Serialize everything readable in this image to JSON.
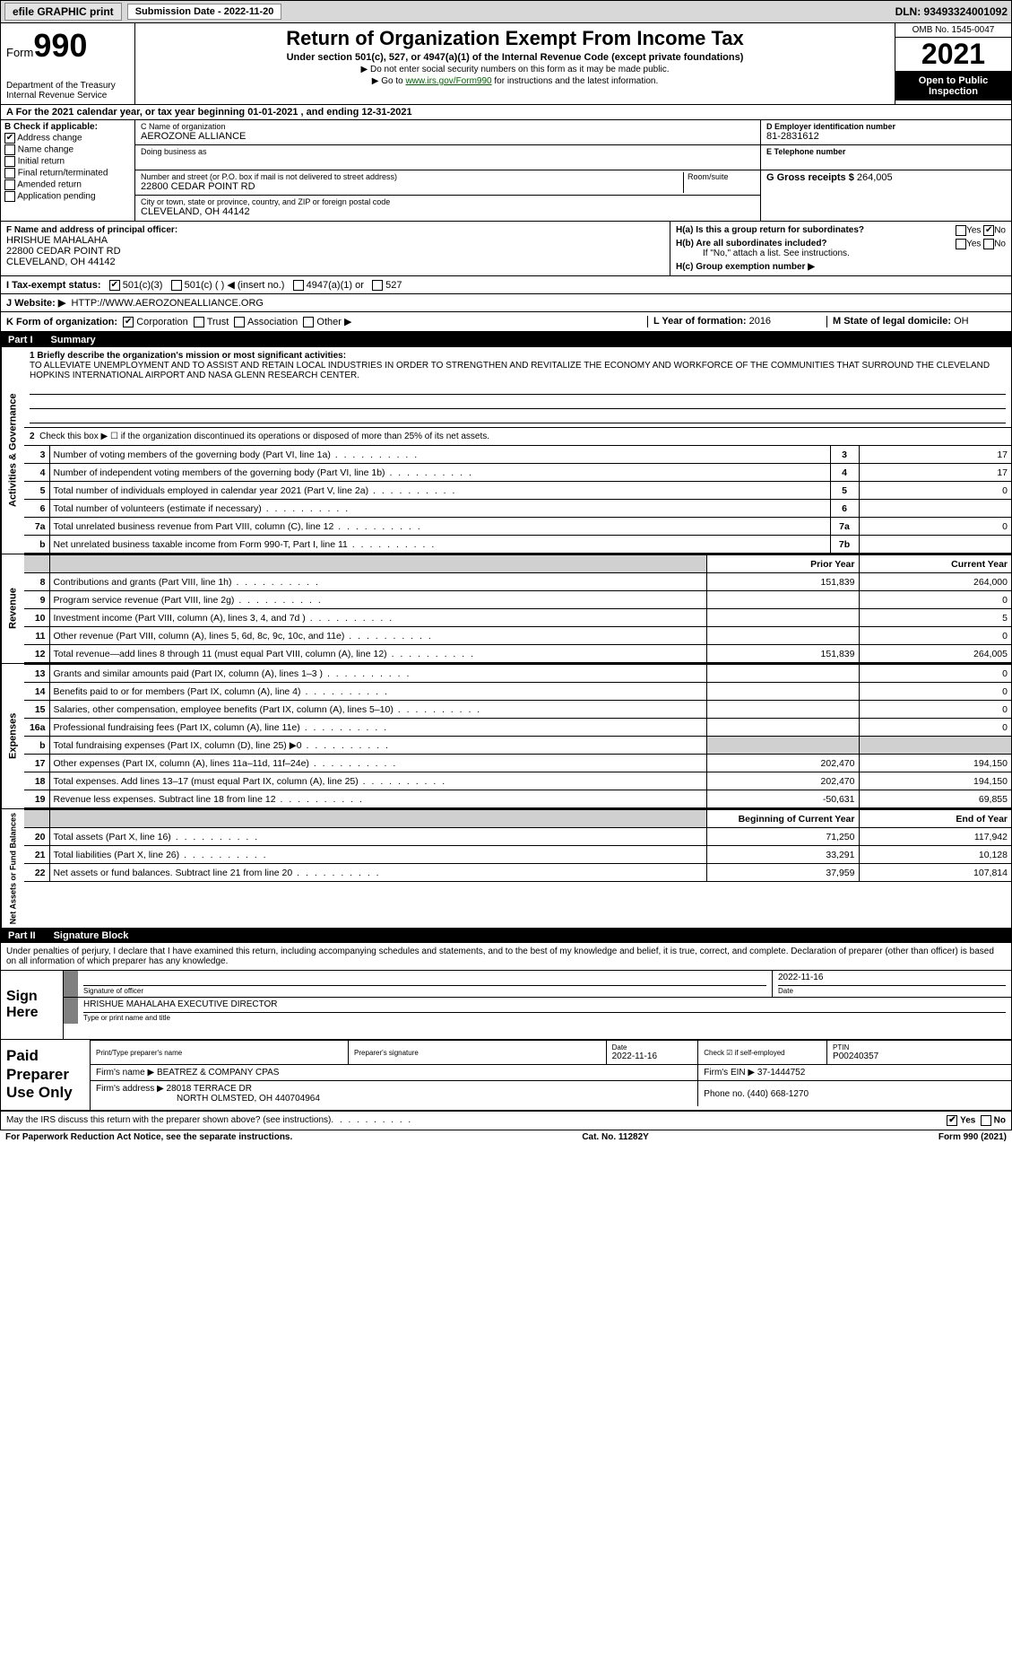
{
  "topbar": {
    "efile": "efile GRAPHIC print",
    "sub_label": "Submission Date - 2022-11-20",
    "dln": "DLN: 93493324001092"
  },
  "header": {
    "form_prefix": "Form",
    "form_number": "990",
    "dept": "Department of the Treasury",
    "irs": "Internal Revenue Service",
    "title": "Return of Organization Exempt From Income Tax",
    "sub": "Under section 501(c), 527, or 4947(a)(1) of the Internal Revenue Code (except private foundations)",
    "note1": "▶ Do not enter social security numbers on this form as it may be made public.",
    "note2_pre": "▶ Go to ",
    "note2_link": "www.irs.gov/Form990",
    "note2_post": " for instructions and the latest information.",
    "omb": "OMB No. 1545-0047",
    "year": "2021",
    "open": "Open to Public Inspection"
  },
  "row_a": "A For the 2021 calendar year, or tax year beginning 01-01-2021   , and ending 12-31-2021",
  "box_b": {
    "hdr": "B Check if applicable:",
    "items": [
      "Address change",
      "Name change",
      "Initial return",
      "Final return/terminated",
      "Amended return",
      "Application pending"
    ]
  },
  "box_c": {
    "name_lbl": "C Name of organization",
    "name": "AEROZONE ALLIANCE",
    "dba_lbl": "Doing business as",
    "dba": "",
    "street_lbl": "Number and street (or P.O. box if mail is not delivered to street address)",
    "room_lbl": "Room/suite",
    "street": "22800 CEDAR POINT RD",
    "city_lbl": "City or town, state or province, country, and ZIP or foreign postal code",
    "city": "CLEVELAND, OH  44142"
  },
  "box_de": {
    "d_lbl": "D Employer identification number",
    "d_val": "81-2831612",
    "e_lbl": "E Telephone number",
    "e_val": "",
    "g_lbl": "G Gross receipts $",
    "g_val": "264,005"
  },
  "box_f": {
    "lbl": "F Name and address of principal officer:",
    "name": "HRISHUE MAHALAHA",
    "addr1": "22800 CEDAR POINT RD",
    "addr2": "CLEVELAND, OH  44142"
  },
  "box_h": {
    "ha": "H(a)  Is this a group return for subordinates?",
    "hb": "H(b)  Are all subordinates included?",
    "hb_note": "If \"No,\" attach a list. See instructions.",
    "hc": "H(c)  Group exemption number ▶",
    "yes": "Yes",
    "no": "No"
  },
  "row_i": {
    "lbl": "I   Tax-exempt status:",
    "o1": "501(c)(3)",
    "o2": "501(c) (   ) ◀ (insert no.)",
    "o3": "4947(a)(1) or",
    "o4": "527"
  },
  "row_j": {
    "lbl": "J   Website: ▶",
    "val": "HTTP://WWW.AEROZONEALLIANCE.ORG"
  },
  "row_k": {
    "lbl": "K Form of organization:",
    "opts": [
      "Corporation",
      "Trust",
      "Association",
      "Other ▶"
    ]
  },
  "row_lm": {
    "l_lbl": "L Year of formation:",
    "l_val": "2016",
    "m_lbl": "M State of legal domicile:",
    "m_val": "OH"
  },
  "part1": {
    "tag": "Part I",
    "title": "Summary"
  },
  "mission": {
    "lbl": "1  Briefly describe the organization's mission or most significant activities:",
    "text": "TO ALLEVIATE UNEMPLOYMENT AND TO ASSIST AND RETAIN LOCAL INDUSTRIES IN ORDER TO STRENGTHEN AND REVITALIZE THE ECONOMY AND WORKFORCE OF THE COMMUNITIES THAT SURROUND THE CLEVELAND HOPKINS INTERNATIONAL AIRPORT AND NASA GLENN RESEARCH CENTER."
  },
  "line2": "Check this box ▶ ☐  if the organization discontinued its operations or disposed of more than 25% of its net assets.",
  "gov_rows": [
    {
      "n": "3",
      "d": "Number of voting members of the governing body (Part VI, line 1a)",
      "b": "3",
      "v": "17"
    },
    {
      "n": "4",
      "d": "Number of independent voting members of the governing body (Part VI, line 1b)",
      "b": "4",
      "v": "17"
    },
    {
      "n": "5",
      "d": "Total number of individuals employed in calendar year 2021 (Part V, line 2a)",
      "b": "5",
      "v": "0"
    },
    {
      "n": "6",
      "d": "Total number of volunteers (estimate if necessary)",
      "b": "6",
      "v": ""
    },
    {
      "n": "7a",
      "d": "Total unrelated business revenue from Part VIII, column (C), line 12",
      "b": "7a",
      "v": "0"
    },
    {
      "n": "b",
      "d": "Net unrelated business taxable income from Form 990-T, Part I, line 11",
      "b": "7b",
      "v": ""
    }
  ],
  "col_hdrs": {
    "prior": "Prior Year",
    "current": "Current Year"
  },
  "rev_rows": [
    {
      "n": "8",
      "d": "Contributions and grants (Part VIII, line 1h)",
      "p": "151,839",
      "c": "264,000"
    },
    {
      "n": "9",
      "d": "Program service revenue (Part VIII, line 2g)",
      "p": "",
      "c": "0"
    },
    {
      "n": "10",
      "d": "Investment income (Part VIII, column (A), lines 3, 4, and 7d )",
      "p": "",
      "c": "5"
    },
    {
      "n": "11",
      "d": "Other revenue (Part VIII, column (A), lines 5, 6d, 8c, 9c, 10c, and 11e)",
      "p": "",
      "c": "0"
    },
    {
      "n": "12",
      "d": "Total revenue—add lines 8 through 11 (must equal Part VIII, column (A), line 12)",
      "p": "151,839",
      "c": "264,005"
    }
  ],
  "exp_rows": [
    {
      "n": "13",
      "d": "Grants and similar amounts paid (Part IX, column (A), lines 1–3 )",
      "p": "",
      "c": "0"
    },
    {
      "n": "14",
      "d": "Benefits paid to or for members (Part IX, column (A), line 4)",
      "p": "",
      "c": "0"
    },
    {
      "n": "15",
      "d": "Salaries, other compensation, employee benefits (Part IX, column (A), lines 5–10)",
      "p": "",
      "c": "0"
    },
    {
      "n": "16a",
      "d": "Professional fundraising fees (Part IX, column (A), line 11e)",
      "p": "",
      "c": "0"
    },
    {
      "n": "b",
      "d": "Total fundraising expenses (Part IX, column (D), line 25) ▶0",
      "p": "SHADE",
      "c": "SHADE"
    },
    {
      "n": "17",
      "d": "Other expenses (Part IX, column (A), lines 11a–11d, 11f–24e)",
      "p": "202,470",
      "c": "194,150"
    },
    {
      "n": "18",
      "d": "Total expenses. Add lines 13–17 (must equal Part IX, column (A), line 25)",
      "p": "202,470",
      "c": "194,150"
    },
    {
      "n": "19",
      "d": "Revenue less expenses. Subtract line 18 from line 12",
      "p": "-50,631",
      "c": "69,855"
    }
  ],
  "na_hdrs": {
    "begin": "Beginning of Current Year",
    "end": "End of Year"
  },
  "na_rows": [
    {
      "n": "20",
      "d": "Total assets (Part X, line 16)",
      "p": "71,250",
      "c": "117,942"
    },
    {
      "n": "21",
      "d": "Total liabilities (Part X, line 26)",
      "p": "33,291",
      "c": "10,128"
    },
    {
      "n": "22",
      "d": "Net assets or fund balances. Subtract line 21 from line 20",
      "p": "37,959",
      "c": "107,814"
    }
  ],
  "side_labels": {
    "gov": "Activities & Governance",
    "rev": "Revenue",
    "exp": "Expenses",
    "na": "Net Assets or Fund Balances"
  },
  "part2": {
    "tag": "Part II",
    "title": "Signature Block"
  },
  "sig_decl": "Under penalties of perjury, I declare that I have examined this return, including accompanying schedules and statements, and to the best of my knowledge and belief, it is true, correct, and complete. Declaration of preparer (other than officer) is based on all information of which preparer has any knowledge.",
  "sign": {
    "here": "Sign Here",
    "sig_lbl": "Signature of officer",
    "date": "2022-11-16",
    "date_lbl": "Date",
    "name": "HRISHUE MAHALAHA  EXECUTIVE DIRECTOR",
    "name_lbl": "Type or print name and title"
  },
  "paid": {
    "title": "Paid Preparer Use Only",
    "h1": "Print/Type preparer's name",
    "h2": "Preparer's signature",
    "h3": "Date",
    "h3v": "2022-11-16",
    "h4": "Check ☑ if self-employed",
    "h5": "PTIN",
    "h5v": "P00240357",
    "firm_lbl": "Firm's name    ▶",
    "firm": "BEATREZ & COMPANY CPAS",
    "ein_lbl": "Firm's EIN ▶",
    "ein": "37-1444752",
    "addr_lbl": "Firm's address ▶",
    "addr1": "28018 TERRACE DR",
    "addr2": "NORTH OLMSTED, OH  440704964",
    "phone_lbl": "Phone no.",
    "phone": "(440) 668-1270"
  },
  "discuss": "May the IRS discuss this return with the preparer shown above? (see instructions)",
  "footer": {
    "left": "For Paperwork Reduction Act Notice, see the separate instructions.",
    "mid": "Cat. No. 11282Y",
    "right": "Form 990 (2021)"
  }
}
